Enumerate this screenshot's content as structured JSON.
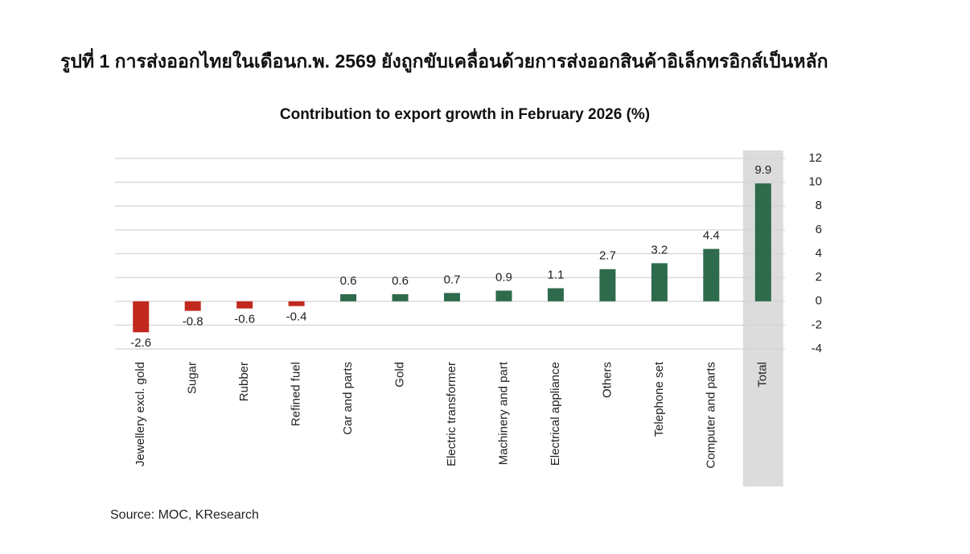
{
  "chart_data": {
    "type": "bar",
    "title": "รูปที่ 1 การส่งออกไทยในเดือนก.พ. 2569 ยังถูกขับเคลื่อนด้วยการส่งออกสินค้าอิเล็กทรอิกส์เป็นหลัก",
    "subtitle": "Contribution to export growth in February 2026 (%)",
    "source": "Source: MOC, KResearch",
    "categories": [
      "Jewellery excl. gold",
      "Sugar",
      "Rubber",
      "Refined fuel",
      "Car and parts",
      "Gold",
      "Electric transformer",
      "Machinery and part",
      "Electrical appliance",
      "Others",
      "Telephone set",
      "Computer and parts",
      "Total"
    ],
    "values": [
      -2.6,
      -0.8,
      -0.6,
      -0.4,
      0.6,
      0.6,
      0.7,
      0.9,
      1.1,
      2.7,
      3.2,
      4.4,
      9.9
    ],
    "color": "#2e6a4c",
    "negative_color": "#c1281e",
    "highlight_index": 12,
    "highlight_color": "#dcdcdc",
    "ylim": [
      -4,
      12
    ],
    "yticks": [
      -4,
      -2,
      0,
      2,
      4,
      6,
      8,
      10,
      12
    ],
    "grid": true,
    "y_axis_side": "right"
  }
}
